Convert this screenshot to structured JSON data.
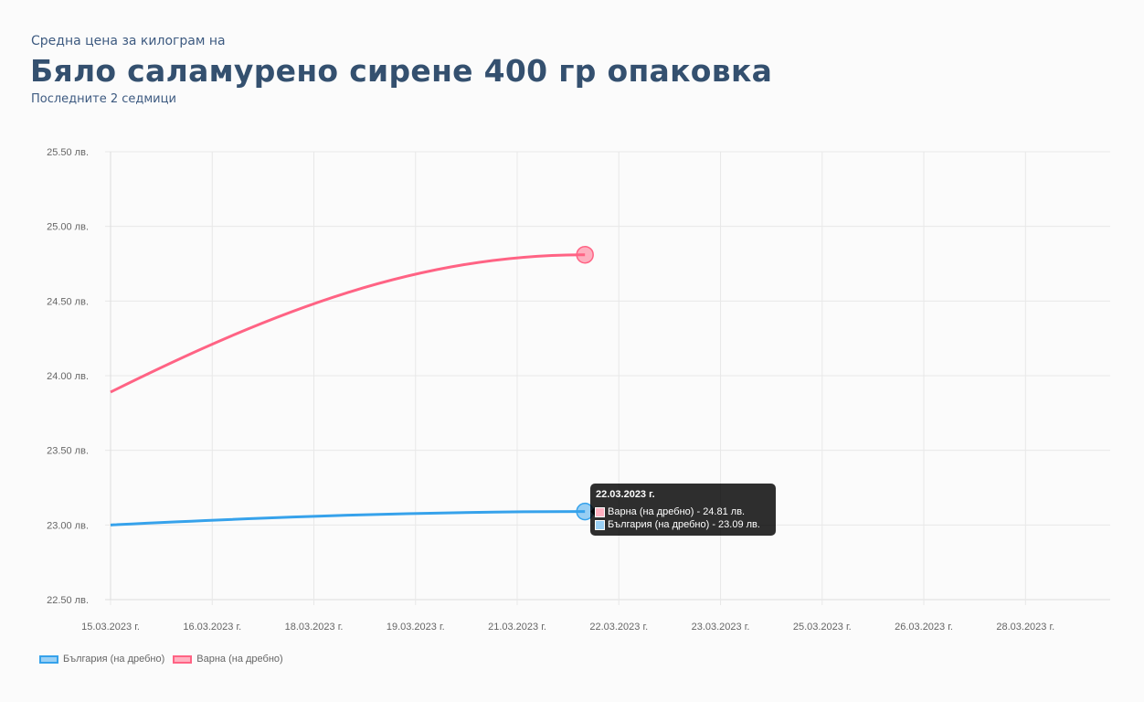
{
  "header": {
    "pretitle": "Средна цена за килограм на",
    "title": "Бяло саламурено сирене 400 гр опаковка",
    "subtitle": "Последните 2 седмици"
  },
  "chart_data": {
    "type": "line",
    "title": "Бяло саламурено сирене 400 гр опаковка",
    "x_ticks": [
      "15.03.2023 г.",
      "16.03.2023 г.",
      "18.03.2023 г.",
      "19.03.2023 г.",
      "21.03.2023 г.",
      "22.03.2023 г.",
      "23.03.2023 г.",
      "25.03.2023 г.",
      "26.03.2023 г.",
      "28.03.2023 г."
    ],
    "x_tick_days": [
      0,
      1.5,
      3,
      4.5,
      6,
      7.5,
      9,
      10.5,
      12,
      13.5
    ],
    "x_range_days": [
      0,
      14.75
    ],
    "y_ticks": [
      "25.50 лв.",
      "25.00 лв.",
      "24.50 лв.",
      "24.00 лв.",
      "23.50 лв.",
      "23.00 лв.",
      "22.50 лв."
    ],
    "y_tick_values": [
      25.5,
      25,
      24.5,
      24,
      23.5,
      23,
      22.5
    ],
    "ylim": [
      22.5,
      25.5
    ],
    "grid": true,
    "legend_position": "bottom-left",
    "series": [
      {
        "name": "България (на дребно)",
        "color": "#36a2eb",
        "x_days": [
          0,
          7
        ],
        "dates": [
          "15.03.2023 г.",
          "22.03.2023 г."
        ],
        "values": [
          23.0,
          23.09
        ]
      },
      {
        "name": "Варна (на дребно)",
        "color": "#ff6384",
        "x_days": [
          0,
          7
        ],
        "dates": [
          "15.03.2023 г.",
          "22.03.2023 г."
        ],
        "values": [
          23.89,
          24.81
        ]
      }
    ],
    "tooltip": {
      "title": "22.03.2023 г.",
      "lines": [
        "Варна (на дребно) - 24.81 лв.",
        "България (на дребно) - 23.09 лв."
      ]
    }
  }
}
